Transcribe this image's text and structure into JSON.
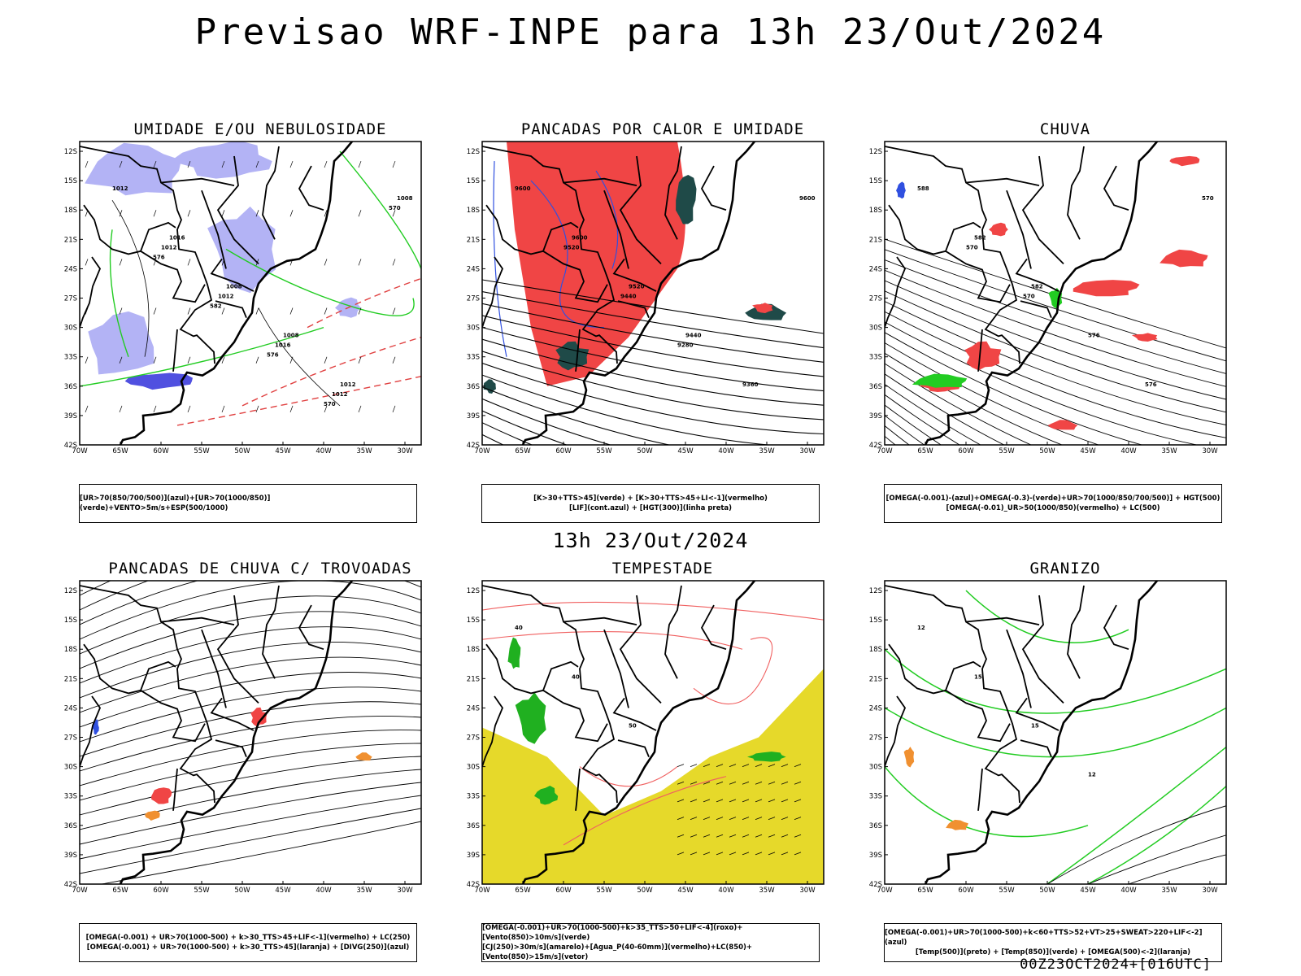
{
  "header": {
    "title": "Previsao WRF-INPE  para 13h 23/Out/2024"
  },
  "middle_label": "13h 23/Out/2024",
  "footer": "00Z23OCT2024+[016UTC]",
  "axes": {
    "lat_labels": [
      "12S",
      "15S",
      "18S",
      "21S",
      "24S",
      "27S",
      "30S",
      "33S",
      "36S",
      "39S",
      "42S"
    ],
    "lon_labels": [
      "70W",
      "65W",
      "60W",
      "55W",
      "50W",
      "45W",
      "40W",
      "35W",
      "30W"
    ]
  },
  "colors": {
    "blue_fill": "#b3b3f5",
    "red_fill": "#f04545",
    "dark_teal": "#1f4a48",
    "green": "#22cc22",
    "yellow": "#e6d92a",
    "orange": "#f09030",
    "blue": "#3050e0",
    "red_line": "#f06060"
  },
  "panels": [
    {
      "title": "UMIDADE E/OU NEBULOSIDADE",
      "legend": [
        "[UR>70(850/700/500)](azul)+[UR>70(1000/850)](verde)+VENTO>5m/s+ESP(500/1000)"
      ],
      "labels": [
        "1012",
        "1016",
        "1008",
        "1008",
        "1012",
        "1008",
        "1012",
        "1012",
        "1016",
        "1012",
        "570",
        "576",
        "582",
        "576",
        "570"
      ]
    },
    {
      "title": "PANCADAS POR CALOR E UMIDADE",
      "legend": [
        "[K>30+TTS>45](verde) + [K>30+TTS>45+LI<-1](vermelho)",
        "[LIF](cont.azul) + [HGT(300)](linha preta)"
      ],
      "labels": [
        "9600",
        "9600",
        "9520",
        "9440",
        "9360",
        "9600",
        "9520",
        "9440",
        "9280"
      ]
    },
    {
      "title": "CHUVA",
      "legend": [
        "[OMEGA(-0.001)-(azul)+OMEGA(-0.3)-(verde)+UR>70(1000/850/700/500)] + HGT(500)",
        "[OMEGA(-0.01)_UR>50(1000/850)(vermelho) + LC(500)"
      ],
      "labels": [
        "588",
        "582",
        "582",
        "576",
        "576",
        "570",
        "570",
        "570"
      ]
    },
    {
      "title": "PANCADAS DE CHUVA C/ TROVOADAS",
      "legend": [
        "[OMEGA(-0.001) + UR>70(1000-500) + k>30_TTS>45+LIF<-1](vermelho) + LC(250)",
        "[OMEGA(-0.001) + UR>70(1000-500) + k>30_TTS>45](laranja) + [DIVG(250)](azul)"
      ],
      "labels": []
    },
    {
      "title": "TEMPESTADE",
      "legend": [
        "[OMEGA(-0.001)+UR>70(1000-500)+k>35_TTS>50+LIF<-4](roxo)+[Vento(850)>10m/s](verde)",
        "[CJ(250)>30m/s](amarelo)+[Agua_P(40-60mm)](vermelho)+LC(850)+[Vento(850)>15m/s](vetor)"
      ],
      "labels": [
        "40",
        "40",
        "50"
      ]
    },
    {
      "title": "GRANIZO",
      "legend": [
        "[OMEGA(-0.001)+UR>70(1000-500)+k<60+TTS>52+VT>25+SWEAT>220+LIF<-2](azul)",
        "[Temp(500)](preto) + [Temp(850)](verde) + [OMEGA(500)<-2](laranja)"
      ],
      "labels": [
        "12",
        "15",
        "15",
        "12"
      ]
    }
  ]
}
